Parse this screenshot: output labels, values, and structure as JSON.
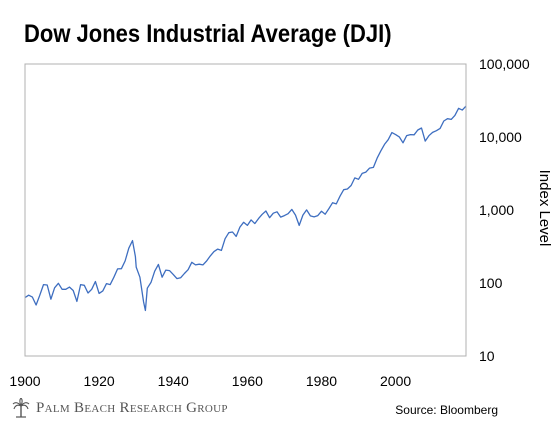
{
  "title": "Dow Jones Industrial Average (DJI)",
  "brand": "Palm Beach Research Group",
  "source": "Source: Bloomberg",
  "colors": {
    "line": "#3e6ec0",
    "axis": "#b0b0b0",
    "text": "#000000"
  },
  "chart_data": {
    "type": "line",
    "title": "Dow Jones Industrial Average (DJI)",
    "xlabel": "",
    "ylabel": "Index Level",
    "yscale": "log",
    "xlim": [
      1900,
      2019
    ],
    "ylim": [
      10,
      100000
    ],
    "xticks": [
      "1900",
      "1920",
      "1940",
      "1960",
      "1980",
      "2000"
    ],
    "xtick_values": [
      1900,
      1920,
      1940,
      1960,
      1980,
      2000
    ],
    "yticks": [
      "10",
      "100",
      "1,000",
      "10,000",
      "100,000"
    ],
    "ytick_values": [
      10,
      100,
      1000,
      10000,
      100000
    ],
    "grid": false,
    "series": [
      {
        "name": "",
        "x": [
          1900,
          1901,
          1902,
          1903,
          1904,
          1905,
          1906,
          1907,
          1908,
          1909,
          1910,
          1911,
          1912,
          1913,
          1914,
          1915,
          1916,
          1917,
          1918,
          1919,
          1920,
          1921,
          1922,
          1923,
          1924,
          1925,
          1926,
          1927,
          1928,
          1929,
          1929.8,
          1930,
          1931,
          1932,
          1932.5,
          1933,
          1934,
          1935,
          1936,
          1937,
          1938,
          1939,
          1940,
          1941,
          1942,
          1943,
          1944,
          1945,
          1946,
          1947,
          1948,
          1949,
          1950,
          1951,
          1952,
          1953,
          1954,
          1955,
          1956,
          1957,
          1958,
          1959,
          1960,
          1961,
          1962,
          1963,
          1964,
          1965,
          1966,
          1967,
          1968,
          1969,
          1970,
          1971,
          1972,
          1973,
          1974,
          1975,
          1976,
          1977,
          1978,
          1979,
          1980,
          1981,
          1982,
          1983,
          1984,
          1985,
          1986,
          1987,
          1988,
          1989,
          1990,
          1991,
          1992,
          1993,
          1994,
          1995,
          1996,
          1997,
          1998,
          1999,
          2000,
          2001,
          2002,
          2003,
          2004,
          2005,
          2006,
          2007,
          2008,
          2009,
          2010,
          2011,
          2012,
          2013,
          2014,
          2015,
          2016,
          2017,
          2018,
          2019
        ],
        "values": [
          63,
          68,
          64,
          50,
          68,
          95,
          94,
          60,
          86,
          99,
          82,
          82,
          88,
          79,
          56,
          95,
          93,
          73,
          82,
          105,
          72,
          78,
          98,
          95,
          120,
          156,
          157,
          200,
          300,
          381,
          230,
          165,
          120,
          55,
          42,
          85,
          102,
          145,
          180,
          120,
          150,
          148,
          131,
          115,
          118,
          135,
          152,
          192,
          177,
          181,
          177,
          200,
          235,
          269,
          291,
          280,
          404,
          488,
          499,
          435,
          584,
          679,
          615,
          731,
          652,
          763,
          874,
          969,
          785,
          905,
          944,
          800,
          839,
          890,
          1020,
          851,
          616,
          852,
          1004,
          831,
          805,
          838,
          964,
          875,
          1046,
          1258,
          1211,
          1546,
          1896,
          1938,
          2168,
          2753,
          2633,
          3168,
          3301,
          3754,
          3834,
          5117,
          6448,
          7908,
          9181,
          11497,
          10787,
          10021,
          8341,
          10453,
          10783,
          10717,
          12463,
          13264,
          8776,
          10428,
          11577,
          12217,
          13104,
          16576,
          17823,
          17425,
          19762,
          24719,
          23327,
          26500
        ]
      }
    ]
  }
}
